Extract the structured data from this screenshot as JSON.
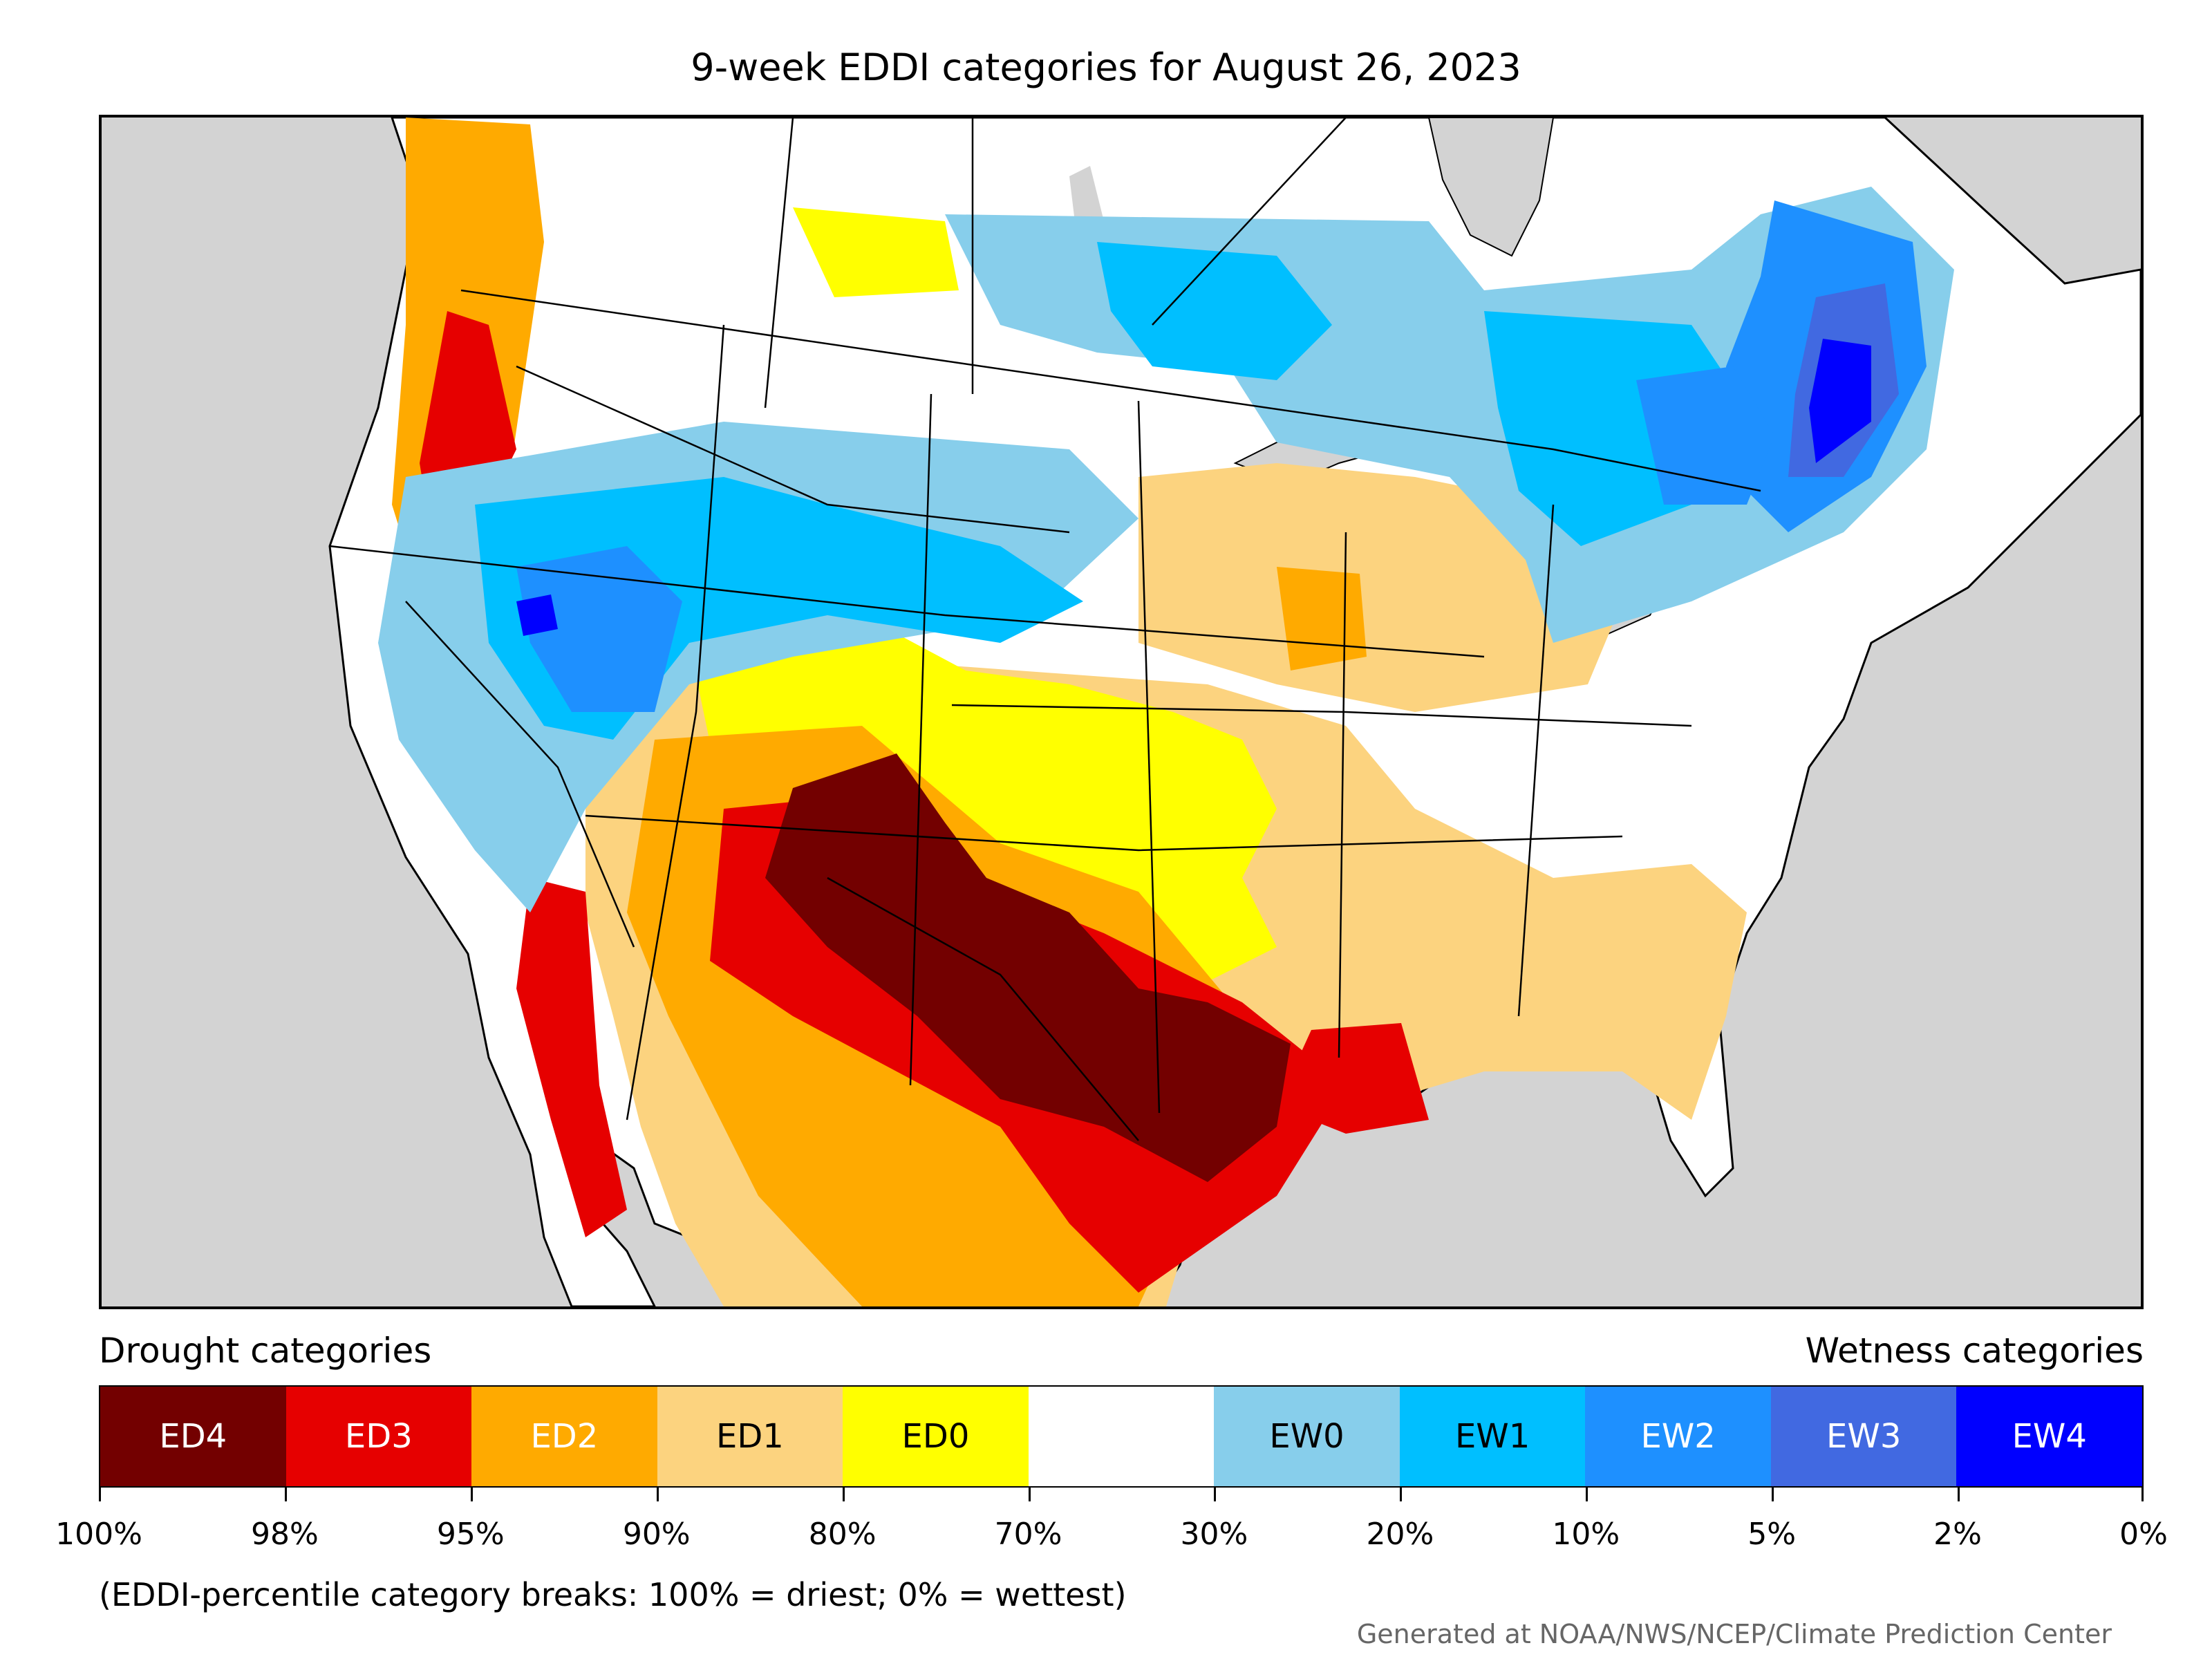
{
  "title": "9-week EDDI categories for August 26, 2023",
  "legend": {
    "drought_heading": "Drought categories",
    "wetness_heading": "Wetness categories",
    "categories": [
      {
        "label": "ED4",
        "color": "#730000",
        "text_color": "#ffffff"
      },
      {
        "label": "ED3",
        "color": "#e60000",
        "text_color": "#ffffff"
      },
      {
        "label": "ED2",
        "color": "#ffaa00",
        "text_color": "#ffffff"
      },
      {
        "label": "ED1",
        "color": "#fcd37f",
        "text_color": "#000000"
      },
      {
        "label": "ED0",
        "color": "#ffff00",
        "text_color": "#000000"
      },
      {
        "label": "",
        "color": "#ffffff",
        "text_color": "#000000"
      },
      {
        "label": "EW0",
        "color": "#87ceeb",
        "text_color": "#000000"
      },
      {
        "label": "EW1",
        "color": "#00bfff",
        "text_color": "#000000"
      },
      {
        "label": "EW2",
        "color": "#1e90ff",
        "text_color": "#ffffff"
      },
      {
        "label": "EW3",
        "color": "#4169e1",
        "text_color": "#ffffff"
      },
      {
        "label": "EW4",
        "color": "#0000ff",
        "text_color": "#ffffff"
      }
    ],
    "breaks": [
      "100%",
      "98%",
      "95%",
      "90%",
      "80%",
      "70%",
      "30%",
      "20%",
      "10%",
      "5%",
      "2%",
      "0%"
    ]
  },
  "note": "(EDDI-percentile category breaks: 100% = driest; 0% = wettest)",
  "credit": "Generated at NOAA/NWS/NCEP/Climate Prediction Center",
  "map": {
    "ocean_color": "#d3d3d3",
    "land_color": "#ffffff",
    "border_color": "#000000"
  }
}
